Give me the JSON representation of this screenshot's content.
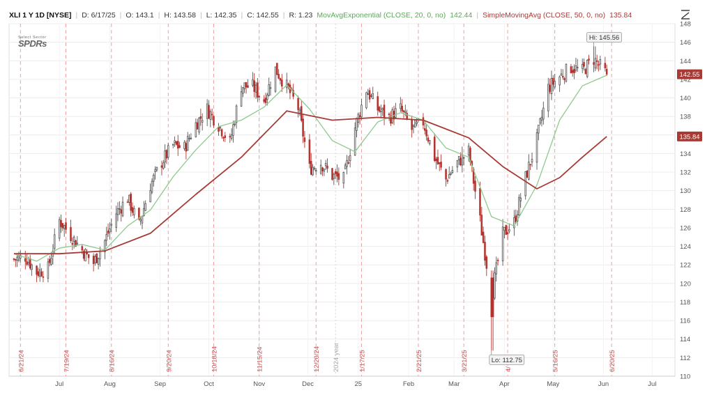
{
  "header": {
    "symbol": "XLI 1 Y 1D [NYSE]",
    "date": "D: 6/17/25",
    "open": "O: 143.1",
    "high": "H: 143.58",
    "low": "L: 142.35",
    "close": "C: 142.55",
    "change": "R: 1.23",
    "ema_label": "MovAvgExponential (CLOSE, 20, 0, no)",
    "ema_value": "142.44",
    "sma_label": "SimpleMovingAvg (CLOSE, 50, 0, no)",
    "sma_value": "135.84"
  },
  "logo": {
    "small": "Select Sector",
    "big": "SPDRs"
  },
  "icons": {
    "toolbar": "drawing-tool-icon"
  },
  "colors": {
    "up": "#ffffff",
    "down": "#b5332e",
    "ema": "#8fc98f",
    "sma": "#a83a36",
    "grid": "#ececec",
    "event_line": "#e8a3a3",
    "price_badge": "#a83a36"
  },
  "chart_data": {
    "type": "candlestick",
    "ylim": [
      110,
      148
    ],
    "yticks": [
      110,
      112,
      114,
      116,
      118,
      120,
      122,
      124,
      126,
      128,
      130,
      132,
      134,
      136,
      138,
      140,
      142,
      144,
      146,
      148
    ],
    "x_month_labels": [
      {
        "label": "Jul",
        "date": "2024-07-15"
      },
      {
        "label": "Aug",
        "date": "2024-08-15"
      },
      {
        "label": "Sep",
        "date": "2024-09-15"
      },
      {
        "label": "Oct",
        "date": "2024-10-15"
      },
      {
        "label": "Nov",
        "date": "2024-11-15"
      },
      {
        "label": "Dec",
        "date": "2024-12-15"
      },
      {
        "label": "25",
        "date": "2025-01-15"
      },
      {
        "label": "Feb",
        "date": "2025-02-15"
      },
      {
        "label": "Mar",
        "date": "2025-03-15"
      },
      {
        "label": "Apr",
        "date": "2025-04-15"
      },
      {
        "label": "May",
        "date": "2025-05-15"
      },
      {
        "label": "Jun",
        "date": "2025-06-15"
      },
      {
        "label": "Jul",
        "date": "2025-07-15"
      }
    ],
    "x_range": [
      "2024-06-14",
      "2025-07-29"
    ],
    "event_dates": [
      {
        "label": "6/21/24",
        "date": "2024-06-21"
      },
      {
        "label": "7/19/24",
        "date": "2024-07-19"
      },
      {
        "label": "8/16/24",
        "date": "2024-08-16"
      },
      {
        "label": "9/20/24",
        "date": "2024-09-20"
      },
      {
        "label": "10/18/24",
        "date": "2024-10-18"
      },
      {
        "label": "11/15/24",
        "date": "2024-11-15"
      },
      {
        "label": "12/20/24",
        "date": "2024-12-20"
      },
      {
        "label": "1/17/25",
        "date": "2025-01-17"
      },
      {
        "label": "2/21/25",
        "date": "2025-02-21"
      },
      {
        "label": "3/21/25",
        "date": "2025-03-21"
      },
      {
        "label": "4/",
        "date": "2025-04-17"
      },
      {
        "label": "5/16/25",
        "date": "2025-05-16"
      },
      {
        "label": "6/20/25",
        "date": "2025-06-20"
      }
    ],
    "year_marker": {
      "label": "2024 year",
      "date": "2025-01-01"
    },
    "annotations": {
      "high": {
        "label": "Hi: 145.56",
        "date": "2025-06-09",
        "value": 145.56
      },
      "low": {
        "label": "Lo: 112.75",
        "date": "2025-04-07",
        "value": 112.75
      }
    },
    "price_badges": [
      {
        "label": "142.55",
        "value": 142.55
      },
      {
        "label": "135.84",
        "value": 135.84
      }
    ],
    "close_series": [
      [
        "2024-06-17",
        122.6
      ],
      [
        "2024-06-24",
        122.9
      ],
      [
        "2024-07-01",
        121.2
      ],
      [
        "2024-07-08",
        121.6
      ],
      [
        "2024-07-15",
        126.8
      ],
      [
        "2024-07-22",
        125.2
      ],
      [
        "2024-07-29",
        123.6
      ],
      [
        "2024-08-05",
        122.2
      ],
      [
        "2024-08-12",
        124.6
      ],
      [
        "2024-08-19",
        127.6
      ],
      [
        "2024-08-26",
        129.2
      ],
      [
        "2024-09-02",
        126.3
      ],
      [
        "2024-09-09",
        130.6
      ],
      [
        "2024-09-16",
        133.1
      ],
      [
        "2024-09-23",
        134.9
      ],
      [
        "2024-09-30",
        134.6
      ],
      [
        "2024-10-07",
        137.2
      ],
      [
        "2024-10-14",
        138.8
      ],
      [
        "2024-10-21",
        137.1
      ],
      [
        "2024-10-28",
        135.2
      ],
      [
        "2024-11-04",
        141.3
      ],
      [
        "2024-11-11",
        141.2
      ],
      [
        "2024-11-18",
        139.8
      ],
      [
        "2024-11-25",
        143.1
      ],
      [
        "2024-12-02",
        141.2
      ],
      [
        "2024-12-09",
        138.9
      ],
      [
        "2024-12-16",
        132.4
      ],
      [
        "2024-12-23",
        133.0
      ],
      [
        "2024-12-30",
        131.6
      ],
      [
        "2025-01-06",
        131.2
      ],
      [
        "2025-01-13",
        136.8
      ],
      [
        "2025-01-20",
        140.9
      ],
      [
        "2025-01-27",
        138.8
      ],
      [
        "2025-02-03",
        137.9
      ],
      [
        "2025-02-10",
        138.8
      ],
      [
        "2025-02-17",
        136.6
      ],
      [
        "2025-02-24",
        137.4
      ],
      [
        "2025-03-03",
        133.6
      ],
      [
        "2025-03-10",
        131.2
      ],
      [
        "2025-03-17",
        133.0
      ],
      [
        "2025-03-24",
        134.2
      ],
      [
        "2025-03-31",
        126.8
      ],
      [
        "2025-04-07",
        118.6
      ],
      [
        "2025-04-14",
        125.3
      ],
      [
        "2025-04-21",
        126.6
      ],
      [
        "2025-04-28",
        131.4
      ],
      [
        "2025-05-05",
        135.5
      ],
      [
        "2025-05-12",
        141.1
      ],
      [
        "2025-05-19",
        142.3
      ],
      [
        "2025-05-26",
        143.3
      ],
      [
        "2025-06-02",
        142.9
      ],
      [
        "2025-06-09",
        144.2
      ],
      [
        "2025-06-17",
        142.55
      ]
    ],
    "ema_series": [
      [
        "2024-06-17",
        123.2
      ],
      [
        "2024-07-01",
        122.4
      ],
      [
        "2024-07-15",
        123.8
      ],
      [
        "2024-07-29",
        124.2
      ],
      [
        "2024-08-12",
        123.6
      ],
      [
        "2024-08-26",
        126.2
      ],
      [
        "2024-09-09",
        127.9
      ],
      [
        "2024-09-23",
        131.5
      ],
      [
        "2024-10-07",
        134.4
      ],
      [
        "2024-10-21",
        136.9
      ],
      [
        "2024-11-04",
        137.6
      ],
      [
        "2024-11-18",
        139.0
      ],
      [
        "2024-12-02",
        141.4
      ],
      [
        "2024-12-16",
        138.8
      ],
      [
        "2024-12-30",
        135.4
      ],
      [
        "2025-01-13",
        134.2
      ],
      [
        "2025-01-27",
        137.4
      ],
      [
        "2025-02-10",
        138.4
      ],
      [
        "2025-02-24",
        137.6
      ],
      [
        "2025-03-10",
        134.6
      ],
      [
        "2025-03-24",
        133.6
      ],
      [
        "2025-04-07",
        127.2
      ],
      [
        "2025-04-21",
        126.2
      ],
      [
        "2025-05-05",
        130.6
      ],
      [
        "2025-05-19",
        137.6
      ],
      [
        "2025-06-02",
        141.3
      ],
      [
        "2025-06-17",
        142.44
      ]
    ],
    "sma_series": [
      [
        "2024-06-17",
        123.2
      ],
      [
        "2024-07-15",
        123.2
      ],
      [
        "2024-08-12",
        123.5
      ],
      [
        "2024-09-09",
        125.4
      ],
      [
        "2024-10-07",
        129.6
      ],
      [
        "2024-11-04",
        133.6
      ],
      [
        "2024-12-02",
        138.6
      ],
      [
        "2024-12-30",
        137.6
      ],
      [
        "2025-01-27",
        137.9
      ],
      [
        "2025-02-24",
        137.6
      ],
      [
        "2025-03-24",
        135.7
      ],
      [
        "2025-04-14",
        132.6
      ],
      [
        "2025-05-05",
        130.2
      ],
      [
        "2025-05-19",
        131.4
      ],
      [
        "2025-06-02",
        133.6
      ],
      [
        "2025-06-17",
        135.84
      ]
    ]
  }
}
